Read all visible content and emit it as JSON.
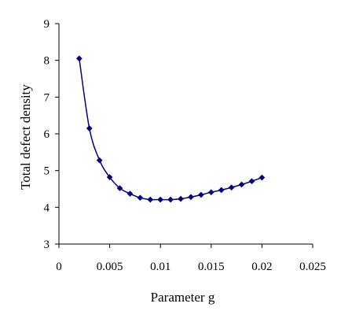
{
  "chart_data": {
    "type": "line",
    "title": "",
    "xlabel": "Parameter g",
    "ylabel": "Total defect density",
    "xlim": [
      0,
      0.025
    ],
    "ylim": [
      3,
      9
    ],
    "xticks": [
      "0",
      "0.005",
      "0.01",
      "0.015",
      "0.02",
      "0.025"
    ],
    "yticks": [
      "3",
      "4",
      "5",
      "6",
      "7",
      "8",
      "9"
    ],
    "grid": false,
    "legend": "none",
    "series": [
      {
        "color": "#000080",
        "marker": "diamond",
        "x": [
          0.002,
          0.003,
          0.004,
          0.005,
          0.006,
          0.007,
          0.008,
          0.009,
          0.01,
          0.011,
          0.012,
          0.013,
          0.014,
          0.015,
          0.016,
          0.017,
          0.018,
          0.019,
          0.02
        ],
        "y": [
          8.05,
          6.15,
          5.28,
          4.82,
          4.52,
          4.37,
          4.26,
          4.21,
          4.21,
          4.21,
          4.23,
          4.28,
          4.34,
          4.41,
          4.47,
          4.54,
          4.62,
          4.71,
          4.81
        ]
      }
    ]
  }
}
